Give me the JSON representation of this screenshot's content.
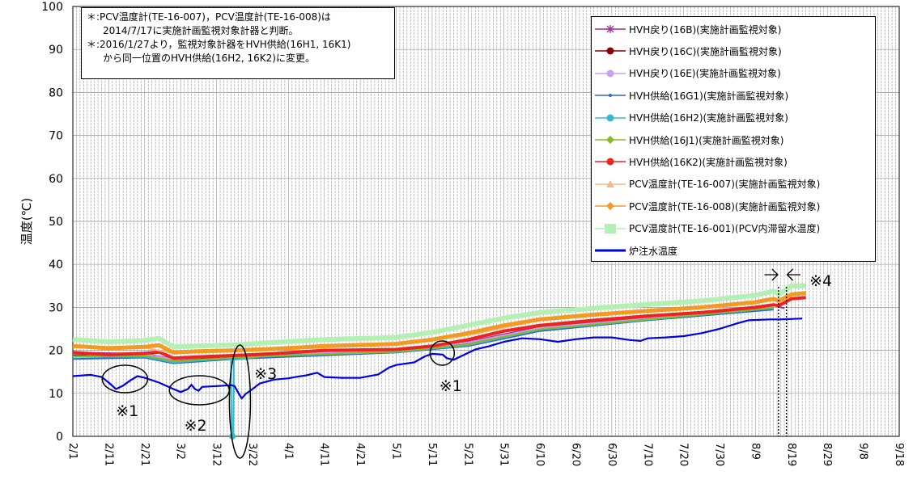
{
  "chart_data": {
    "type": "line",
    "ylabel": "温度(℃)",
    "ylim": [
      0,
      100
    ],
    "y_ticks": [
      "0",
      "10",
      "20",
      "30",
      "40",
      "50",
      "60",
      "70",
      "80",
      "90",
      "100"
    ],
    "x_ticks": [
      "2/1",
      "2/11",
      "2/21",
      "3/2",
      "3/12",
      "3/22",
      "4/1",
      "4/11",
      "4/21",
      "5/1",
      "5/11",
      "5/21",
      "5/31",
      "6/10",
      "6/20",
      "6/30",
      "7/10",
      "7/20",
      "7/30",
      "8/9",
      "8/19",
      "8/29",
      "9/8",
      "9/18"
    ],
    "grid": "vertical daily lines, horizontal every 10",
    "legend_position": "top-right",
    "notes": [
      "＊:PCV温度計(TE-16-007)，PCV温度計(TE-16-008)は",
      "2014/7/17に実施計画監視対象計器と判断。",
      "＊:2016/1/27より，監視対象計器をHVH供給(16H1, 16K1)",
      "から同一位置のHVH供給(16H2, 16K2)に変更。"
    ],
    "annotations": [
      "※1",
      "※2",
      "※3",
      "※1",
      "※4"
    ],
    "series": [
      {
        "name": "HVH戻り(16B)(実施計画監視対象)",
        "color": "#993399",
        "marker": "star",
        "values_note": "overlapped within band",
        "points": [
          [
            0,
            19.5
          ],
          [
            20,
            19.2
          ],
          [
            28,
            18.0
          ],
          [
            45,
            19.0
          ],
          [
            90,
            20.0
          ],
          [
            110,
            22.0
          ],
          [
            130,
            25.5
          ],
          [
            160,
            27.5
          ],
          [
            195,
            30.5
          ],
          [
            198,
            29.8
          ]
        ]
      },
      {
        "name": "HVH戻り(16C)(実施計画監視対象)",
        "color": "#8b0000",
        "marker": "circle",
        "points": [
          [
            0,
            19.0
          ],
          [
            20,
            19.0
          ],
          [
            28,
            17.8
          ],
          [
            45,
            18.5
          ],
          [
            90,
            19.8
          ],
          [
            110,
            21.5
          ],
          [
            130,
            25.0
          ],
          [
            160,
            27.3
          ],
          [
            195,
            30.0
          ]
        ]
      },
      {
        "name": "HVH戻り(16E)(実施計画監視対象)",
        "color": "#c8a2e8",
        "marker": "circle",
        "points": [
          [
            0,
            19.2
          ],
          [
            20,
            19.1
          ],
          [
            28,
            17.9
          ],
          [
            45,
            18.8
          ],
          [
            90,
            19.9
          ],
          [
            110,
            21.8
          ],
          [
            130,
            25.2
          ],
          [
            160,
            27.4
          ],
          [
            195,
            30.2
          ]
        ]
      },
      {
        "name": "HVH供給(16G1)(実施計画監視対象)",
        "color": "#3366cc",
        "marker": "dot",
        "points": [
          [
            0,
            18.0
          ],
          [
            20,
            18.3
          ],
          [
            28,
            17.0
          ],
          [
            45,
            18.0
          ],
          [
            90,
            19.5
          ],
          [
            110,
            21.0
          ],
          [
            130,
            24.5
          ],
          [
            160,
            27.0
          ],
          [
            195,
            29.5
          ]
        ]
      },
      {
        "name": "HVH供給(16H2)(実施計画監視対象)",
        "color": "#33bbcc",
        "marker": "circle",
        "points": [
          [
            0,
            18.5
          ],
          [
            20,
            18.5
          ],
          [
            28,
            17.2
          ],
          [
            42,
            18.0
          ],
          [
            44,
            18.0
          ],
          [
            44.2,
            0
          ],
          [
            44.6,
            0
          ],
          [
            44.8,
            17.8
          ],
          [
            55,
            18.8
          ],
          [
            90,
            19.6
          ],
          [
            110,
            21.2
          ],
          [
            130,
            24.8
          ],
          [
            160,
            27.1
          ],
          [
            195,
            29.8
          ]
        ]
      },
      {
        "name": "HVH供給(16J1)(実施計画監視対象)",
        "color": "#88bb22",
        "marker": "diamond",
        "points": [
          [
            0,
            18.6
          ],
          [
            20,
            18.8
          ],
          [
            28,
            17.5
          ],
          [
            45,
            18.3
          ],
          [
            90,
            19.7
          ],
          [
            110,
            21.4
          ],
          [
            130,
            24.9
          ],
          [
            160,
            27.2
          ],
          [
            195,
            29.9
          ]
        ]
      },
      {
        "name": "HVH供給(16K2)(実施計画監視対象)",
        "color": "#ee2222",
        "marker": "circle",
        "points": [
          [
            0,
            19.5
          ],
          [
            10,
            19.0
          ],
          [
            20,
            19.3
          ],
          [
            24,
            19.6
          ],
          [
            28,
            18.2
          ],
          [
            35,
            18.5
          ],
          [
            45,
            18.8
          ],
          [
            55,
            19.2
          ],
          [
            70,
            20.0
          ],
          [
            90,
            20.2
          ],
          [
            100,
            21.0
          ],
          [
            110,
            22.5
          ],
          [
            120,
            24.5
          ],
          [
            130,
            25.8
          ],
          [
            145,
            27.0
          ],
          [
            160,
            28.0
          ],
          [
            175,
            28.8
          ],
          [
            190,
            30.0
          ],
          [
            195,
            30.6
          ],
          [
            196.5,
            30.4
          ],
          [
            200,
            32.0
          ],
          [
            204,
            32.3
          ]
        ]
      },
      {
        "name": "PCV温度計(TE-16-007)(実施計画監視対象)",
        "color": "#f5b98e",
        "marker": "triangle",
        "points": [
          [
            0,
            20.8
          ],
          [
            20,
            20.6
          ],
          [
            28,
            19.3
          ],
          [
            45,
            19.8
          ],
          [
            90,
            21.3
          ],
          [
            110,
            23.5
          ],
          [
            130,
            27.0
          ],
          [
            160,
            29.0
          ],
          [
            195,
            31.6
          ]
        ]
      },
      {
        "name": "PCV温度計(TE-16-008)(実施計画監視対象)",
        "color": "#f39a22",
        "marker": "diamond",
        "points": [
          [
            0,
            21.0
          ],
          [
            10,
            20.5
          ],
          [
            20,
            20.8
          ],
          [
            24,
            21.2
          ],
          [
            28,
            19.5
          ],
          [
            35,
            19.8
          ],
          [
            45,
            20.0
          ],
          [
            55,
            20.3
          ],
          [
            70,
            21.0
          ],
          [
            90,
            21.5
          ],
          [
            100,
            22.5
          ],
          [
            110,
            24.0
          ],
          [
            120,
            25.8
          ],
          [
            130,
            27.2
          ],
          [
            145,
            28.3
          ],
          [
            160,
            29.2
          ],
          [
            175,
            30.0
          ],
          [
            190,
            31.2
          ],
          [
            195,
            32.0
          ],
          [
            196.5,
            31.5
          ],
          [
            200,
            33.0
          ],
          [
            204,
            33.3
          ]
        ]
      },
      {
        "name": "PCV温度計(TE-16-001)(PCV内滞留水温度)",
        "color": "#b4f0b4",
        "marker": "square",
        "points": [
          [
            0,
            22.5
          ],
          [
            10,
            22.0
          ],
          [
            20,
            22.3
          ],
          [
            24,
            22.8
          ],
          [
            28,
            20.8
          ],
          [
            35,
            21.0
          ],
          [
            45,
            21.3
          ],
          [
            55,
            21.8
          ],
          [
            70,
            22.5
          ],
          [
            90,
            23.0
          ],
          [
            100,
            24.2
          ],
          [
            110,
            25.8
          ],
          [
            120,
            27.5
          ],
          [
            130,
            28.8
          ],
          [
            145,
            29.8
          ],
          [
            160,
            30.7
          ],
          [
            175,
            31.5
          ],
          [
            190,
            32.8
          ],
          [
            195,
            33.8
          ],
          [
            196.5,
            33.0
          ],
          [
            200,
            35.0
          ],
          [
            204,
            35.0
          ]
        ]
      },
      {
        "name": "炉注水温度",
        "color": "#0000e6",
        "marker": "none",
        "points": [
          [
            0,
            14.0
          ],
          [
            5,
            14.3
          ],
          [
            8,
            13.8
          ],
          [
            10,
            12.5
          ],
          [
            12,
            11.0
          ],
          [
            14,
            11.8
          ],
          [
            16,
            13.0
          ],
          [
            18,
            14.0
          ],
          [
            20,
            13.6
          ],
          [
            24,
            12.5
          ],
          [
            28,
            11.0
          ],
          [
            30,
            10.3
          ],
          [
            32,
            11.0
          ],
          [
            33,
            12.0
          ],
          [
            34,
            11.0
          ],
          [
            35,
            10.6
          ],
          [
            36,
            11.5
          ],
          [
            40,
            11.7
          ],
          [
            44,
            11.9
          ],
          [
            45,
            11.7
          ],
          [
            46,
            10.2
          ],
          [
            47,
            8.8
          ],
          [
            48,
            9.8
          ],
          [
            50,
            11.0
          ],
          [
            52,
            12.3
          ],
          [
            56,
            13.2
          ],
          [
            60,
            13.5
          ],
          [
            62,
            13.8
          ],
          [
            65,
            14.2
          ],
          [
            68,
            14.8
          ],
          [
            70,
            13.8
          ],
          [
            75,
            13.6
          ],
          [
            80,
            13.6
          ],
          [
            85,
            14.4
          ],
          [
            88,
            16.0
          ],
          [
            90,
            16.6
          ],
          [
            95,
            17.2
          ],
          [
            98,
            18.6
          ],
          [
            100,
            19.2
          ],
          [
            103,
            19.0
          ],
          [
            104,
            18.2
          ],
          [
            106,
            17.8
          ],
          [
            108,
            18.6
          ],
          [
            112,
            20.2
          ],
          [
            116,
            21.0
          ],
          [
            120,
            22.0
          ],
          [
            125,
            22.8
          ],
          [
            130,
            22.6
          ],
          [
            135,
            22.0
          ],
          [
            140,
            22.6
          ],
          [
            145,
            23.0
          ],
          [
            150,
            23.0
          ],
          [
            155,
            22.4
          ],
          [
            158,
            22.2
          ],
          [
            160,
            22.8
          ],
          [
            165,
            23.0
          ],
          [
            170,
            23.3
          ],
          [
            175,
            24.0
          ],
          [
            180,
            25.0
          ],
          [
            185,
            26.3
          ],
          [
            188,
            27.0
          ],
          [
            194,
            27.2
          ],
          [
            196.5,
            27.2
          ],
          [
            200,
            27.3
          ],
          [
            203,
            27.4
          ]
        ]
      }
    ]
  }
}
